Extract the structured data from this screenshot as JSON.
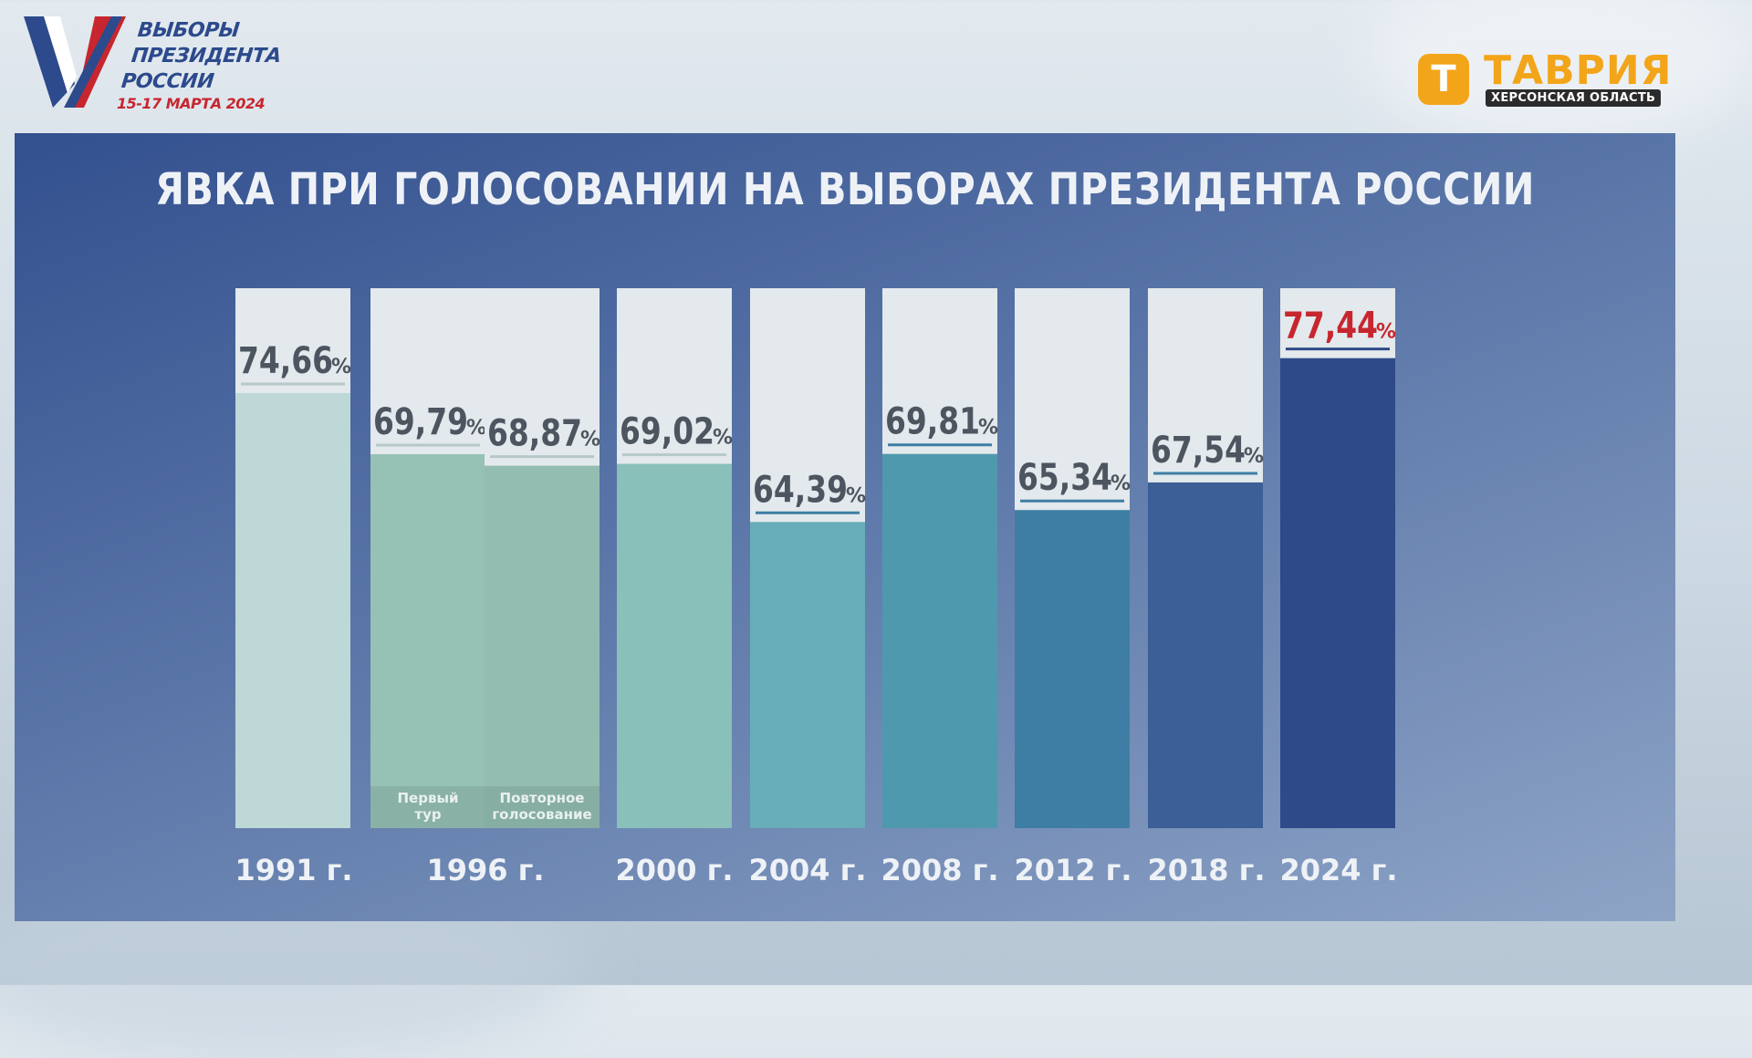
{
  "header": {
    "logo_lines": [
      "ВЫБОРЫ",
      "ПРЕЗИДЕНТА",
      "РОССИИ"
    ],
    "logo_date": "15-17 МАРТА 2024",
    "brand_letter": "Т",
    "brand_name": "ТАВРИЯ",
    "brand_sub": "ХЕРСОНСКАЯ ОБЛАСТЬ"
  },
  "colors": {
    "highlight": "#c7262f",
    "label": "#4d5560"
  },
  "chart_data": {
    "type": "bar",
    "title": "ЯВКА ПРИ ГОЛОСОВАНИИ НА ВЫБОРАХ ПРЕЗИДЕНТА РОССИИ",
    "ylim": [
      0,
      100
    ],
    "grid": false,
    "categories": [
      "1991 г.",
      "1996 г.",
      "2000 г.",
      "2004 г.",
      "2008 г.",
      "2012 г.",
      "2018 г.",
      "2024 г."
    ],
    "bars": [
      {
        "year": "1991 г.",
        "value": 74.66,
        "label": "74,66",
        "color": "#bdd8d6"
      },
      {
        "year": "1996 г.",
        "value": 69.79,
        "label": "69,79",
        "color": "#96c1b5",
        "sub": "Первый тур"
      },
      {
        "year": "1996 г.",
        "value": 68.87,
        "label": "68,87",
        "color": "#93bdb1",
        "sub": "Повторное голосование"
      },
      {
        "year": "2000 г.",
        "value": 69.02,
        "label": "69,02",
        "color": "#89c0b9"
      },
      {
        "year": "2004 г.",
        "value": 64.39,
        "label": "64,39",
        "color": "#67aeb8"
      },
      {
        "year": "2008 г.",
        "value": 69.81,
        "label": "69,81",
        "color": "#4f99ae"
      },
      {
        "year": "2012 г.",
        "value": 65.34,
        "label": "65,34",
        "color": "#3e7ea4"
      },
      {
        "year": "2018 г.",
        "value": 67.54,
        "label": "67,54",
        "color": "#3b5f96"
      },
      {
        "year": "2024 г.",
        "value": 77.44,
        "label": "77,44",
        "color": "#2f4a88",
        "highlight": true
      }
    ],
    "percent_sign": "%"
  }
}
